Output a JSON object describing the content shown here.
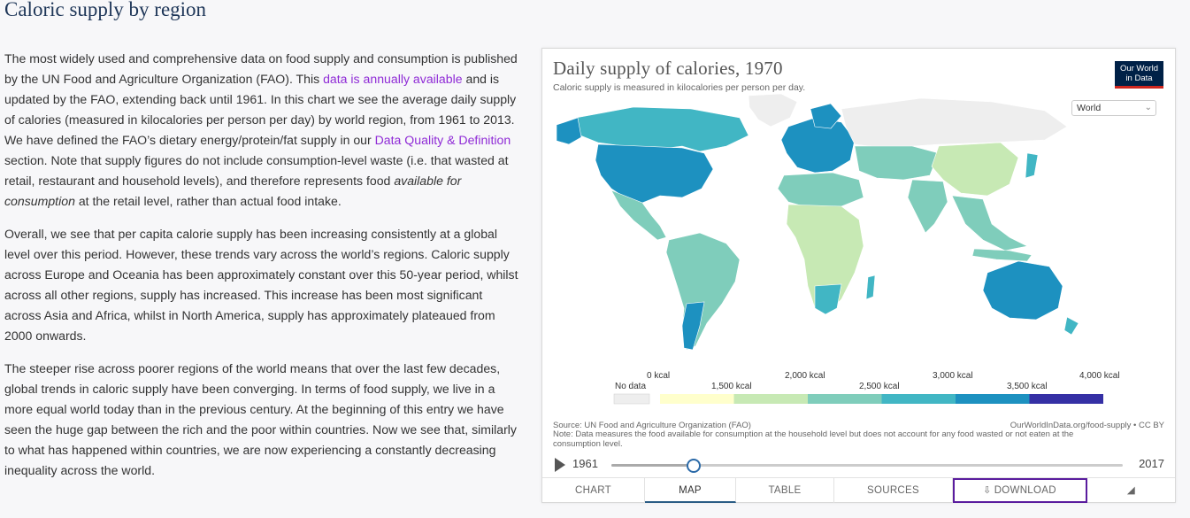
{
  "page": {
    "title": "Caloric supply by region"
  },
  "article": {
    "p1": {
      "t1": "The most widely used and comprehensive data on food supply and consumption is published by the UN Food and Agriculture Organization (FAO). This ",
      "link1": "data is annually available",
      "t2": " and is updated by the FAO, extending back until 1961. In this chart we see the average daily supply of calories (measured in kilocalories per person per day) by world region, from 1961 to 2013. We have defined the FAO’s dietary energy/protein/fat supply in our ",
      "link2": "Data Quality & Definition",
      "t3": " section. Note that supply figures do not include consumption-level waste (i.e. that wasted at retail, restaurant and household levels), and therefore represents food ",
      "em": "available for consumption",
      "t4": " at the retail level, rather than actual food intake."
    },
    "p2": "Overall, we see that per capita calorie supply has been increasing consistently at a global level over this period. However, these trends vary across the world’s regions. Caloric supply across Europe and Oceania has been approximately constant over this 50-year period, whilst across all other regions, supply has increased. This increase has been most significant across Asia and Africa, whilst in North America, supply has approximately plateaued from 2000 onwards.",
    "p3": "The steeper rise across poorer regions of the world means that over the last few decades, global trends in caloric supply have been converging. In terms of food supply, we live in a more equal world today than in the previous century. At the beginning of this entry we have seen the huge gap between the rich and the poor within countries. Now we see that, similarly to what has happened within countries, we are now experiencing a constantly decreasing inequality across the world."
  },
  "chart": {
    "title": "Daily supply of calories, 1970",
    "subtitle": "Caloric supply is measured in kilocalories per person per day.",
    "logo_line1": "Our World",
    "logo_line2": "in Data",
    "region_selected": "World",
    "source": "Source: UN Food and Agriculture Organization (FAO)",
    "url": "OurWorldInData.org/food-supply • CC BY",
    "note": "Note: Data measures the food available for consumption at the household level but does not account for any food wasted or not eaten at the consumption level.",
    "legend": {
      "no_data_label": "No data",
      "no_data_color": "#eeeeee",
      "bins": [
        {
          "from": "0 kcal",
          "to": "1,500 kcal",
          "color": "#ffffcc"
        },
        {
          "from": "1,500 kcal",
          "to": "2,000 kcal",
          "color": "#c7e9b4"
        },
        {
          "from": "2,000 kcal",
          "to": "2,500 kcal",
          "color": "#7fcdbb"
        },
        {
          "from": "2,500 kcal",
          "to": "3,000 kcal",
          "color": "#41b6c4"
        },
        {
          "from": "3,000 kcal",
          "to": "3,500 kcal",
          "color": "#1d91c0"
        },
        {
          "from": "3,500 kcal",
          "to": "4,000 kcal",
          "color": "#3530a5"
        }
      ],
      "labels_top": [
        "0 kcal",
        "2,000 kcal",
        "3,000 kcal",
        "4,000 kcal"
      ],
      "labels_bottom": [
        "1,500 kcal",
        "2,500 kcal",
        "3,500 kcal"
      ]
    },
    "timeline": {
      "start": "1961",
      "end": "2017",
      "selected_year": 1970,
      "min_year": 1961,
      "max_year": 2017
    },
    "tabs": [
      {
        "label": "CHART",
        "active": false
      },
      {
        "label": "MAP",
        "active": true
      },
      {
        "label": "TABLE",
        "active": false
      },
      {
        "label": "SOURCES",
        "active": false
      },
      {
        "label": "DOWNLOAD",
        "active": false
      }
    ]
  },
  "colors": {
    "no_data": "#eeeeee",
    "low": "#c7e9b4",
    "mid": "#7fcdbb",
    "high": "#41b6c4",
    "very_high": "#1d91c0",
    "top": "#3530a5",
    "accent_link": "#8f2bd6"
  }
}
